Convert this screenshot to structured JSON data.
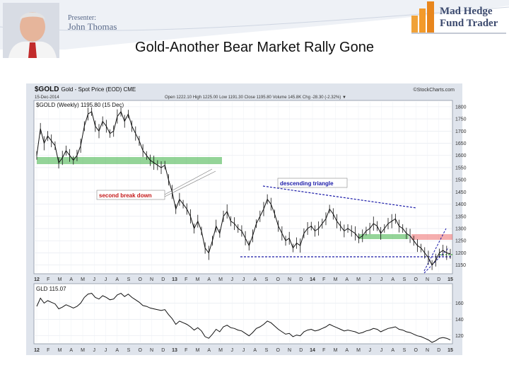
{
  "presenter": {
    "label": "Presenter:",
    "name": "John Thomas"
  },
  "logo": {
    "line1": "Mad Hedge",
    "line2": "Fund Trader"
  },
  "slide": {
    "title": "Gold-Another Bear Market Rally Gone"
  },
  "chart_header": {
    "symbol": "$GOLD",
    "description": "Gold - Spot Price (EOD) CME",
    "date": "15-Dec-2014",
    "quote": "Open 1222.10  High 1225.00  Low 1191.30  Close 1195.80  Volume 145.8K  Chg -28.30 (-2.32%) ▼",
    "source": "©StockCharts.com"
  },
  "annotations": {
    "break_label": "second break down",
    "triangle_label": "descending triangle"
  },
  "colors": {
    "price": "#111111",
    "support": "#3cb043",
    "resistance": "#e84c4c",
    "trend": "#1a1aa8",
    "panel_bg": "#ffffff",
    "frame": "#dfe4ec"
  },
  "chart_data": [
    {
      "type": "line",
      "legend": "$GOLD (Weekly) 1195.80 (15 Dec)",
      "ylim": [
        1120,
        1820
      ],
      "y_ticks": [
        1800,
        1750,
        1700,
        1650,
        1600,
        1550,
        1500,
        1450,
        1400,
        1350,
        1300,
        1250,
        1200,
        1150
      ],
      "x_labels": [
        "12",
        "F",
        "M",
        "A",
        "M",
        "J",
        "J",
        "A",
        "S",
        "O",
        "N",
        "D",
        "13",
        "F",
        "M",
        "A",
        "M",
        "J",
        "J",
        "A",
        "S",
        "O",
        "N",
        "D",
        "14",
        "F",
        "M",
        "A",
        "M",
        "J",
        "J",
        "A",
        "S",
        "O",
        "N",
        "D",
        "15"
      ],
      "series": [
        {
          "values": [
            1600,
            1710,
            1650,
            1680,
            1660,
            1640,
            1570,
            1590,
            1620,
            1600,
            1580,
            1600,
            1640,
            1720,
            1770,
            1780,
            1720,
            1700,
            1740,
            1720,
            1690,
            1700,
            1760,
            1780,
            1740,
            1770,
            1720,
            1690,
            1660,
            1620,
            1600,
            1580,
            1570,
            1560,
            1550,
            1560,
            1500,
            1450,
            1380,
            1420,
            1400,
            1380,
            1350,
            1300,
            1330,
            1290,
            1220,
            1200,
            1250,
            1310,
            1280,
            1350,
            1370,
            1330,
            1320,
            1300,
            1290,
            1260,
            1230,
            1270,
            1320,
            1350,
            1380,
            1420,
            1400,
            1360,
            1310,
            1280,
            1250,
            1260,
            1220,
            1240,
            1230,
            1280,
            1300,
            1310,
            1290,
            1300,
            1320,
            1340,
            1380,
            1360,
            1330,
            1310,
            1290,
            1300,
            1290,
            1280,
            1260,
            1270,
            1290,
            1300,
            1320,
            1310,
            1280,
            1300,
            1320,
            1330,
            1340,
            1310,
            1300,
            1280,
            1270,
            1250,
            1230,
            1220,
            1200,
            1180,
            1150,
            1170,
            1200,
            1210,
            1200,
            1196
          ]
        }
      ]
    },
    {
      "type": "line",
      "legend": "GLD 115.07",
      "ylim": [
        112,
        182
      ],
      "y_ticks": [
        160,
        140,
        120
      ],
      "x_labels": [
        "12",
        "F",
        "M",
        "A",
        "M",
        "J",
        "J",
        "A",
        "S",
        "O",
        "N",
        "D",
        "13",
        "F",
        "M",
        "A",
        "M",
        "J",
        "J",
        "A",
        "S",
        "O",
        "N",
        "D",
        "14",
        "F",
        "M",
        "A",
        "M",
        "J",
        "J",
        "A",
        "S",
        "O",
        "N",
        "D",
        "15"
      ],
      "series": [
        {
          "values": [
            156,
            166,
            160,
            163,
            161,
            159,
            153,
            155,
            158,
            156,
            154,
            156,
            160,
            167,
            171,
            172,
            167,
            165,
            169,
            167,
            164,
            165,
            170,
            172,
            168,
            171,
            167,
            164,
            161,
            157,
            156,
            154,
            153,
            152,
            151,
            152,
            146,
            141,
            134,
            138,
            136,
            134,
            131,
            127,
            130,
            126,
            119,
            117,
            122,
            128,
            125,
            131,
            133,
            130,
            129,
            127,
            126,
            123,
            120,
            124,
            129,
            131,
            134,
            138,
            136,
            132,
            128,
            125,
            122,
            123,
            119,
            121,
            120,
            125,
            127,
            128,
            126,
            127,
            129,
            131,
            134,
            132,
            130,
            128,
            126,
            127,
            126,
            125,
            123,
            124,
            126,
            127,
            129,
            128,
            125,
            127,
            129,
            130,
            131,
            128,
            127,
            125,
            124,
            122,
            120,
            119,
            117,
            115,
            112,
            114,
            117,
            118,
            117,
            115
          ]
        }
      ]
    }
  ]
}
